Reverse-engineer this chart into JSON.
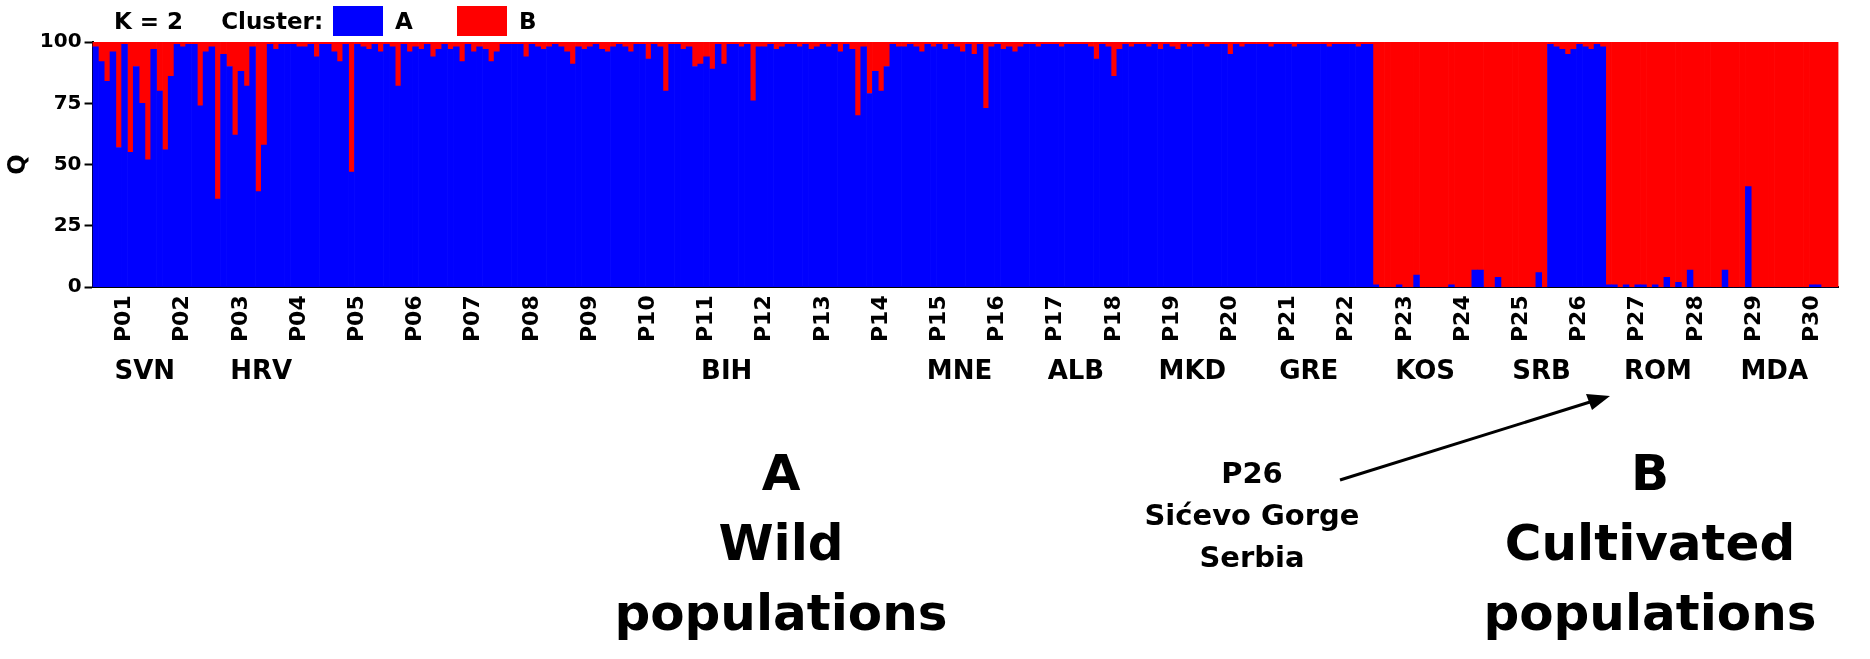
{
  "chart_data": {
    "type": "bar",
    "stacked": true,
    "title": "K = 2",
    "legend_title": "Cluster:",
    "legend": "top left",
    "ylabel": "Q",
    "ylim": [
      0,
      100
    ],
    "yticks": [
      0,
      25,
      50,
      75,
      100
    ],
    "grid": false,
    "categories": [
      null,
      null,
      null,
      null,
      null,
      "P01",
      null,
      null,
      null,
      null,
      null,
      null,
      null,
      null,
      null,
      "P02",
      null,
      null,
      null,
      null,
      null,
      null,
      null,
      null,
      null,
      "P03",
      null,
      null,
      null,
      null,
      null,
      null,
      null,
      null,
      null,
      "P04",
      null,
      null,
      null,
      null,
      null,
      null,
      null,
      null,
      null,
      "P05",
      null,
      null,
      null,
      null,
      null,
      null,
      null,
      null,
      null,
      "P06",
      null,
      null,
      null,
      null,
      null,
      null,
      null,
      null,
      null,
      "P07",
      null,
      null,
      null,
      null,
      null,
      null,
      null,
      null,
      null,
      "P08",
      null,
      null,
      null,
      null,
      null,
      null,
      null,
      null,
      null,
      "P09",
      null,
      null,
      null,
      null,
      null,
      null,
      null,
      null,
      null,
      "P10",
      null,
      null,
      null,
      null,
      null,
      null,
      null,
      null,
      null,
      "P11",
      null,
      null,
      null,
      null,
      null,
      null,
      null,
      null,
      null,
      "P12",
      null,
      null,
      null,
      null,
      null,
      null,
      null,
      null,
      null,
      "P13",
      null,
      null,
      null,
      null,
      null,
      null,
      null,
      null,
      null,
      "P14",
      null,
      null,
      null,
      null,
      null,
      null,
      null,
      null,
      null,
      "P15",
      null,
      null,
      null,
      null,
      null,
      null,
      null,
      null,
      null,
      "P16",
      null,
      null,
      null,
      null,
      null,
      null,
      null,
      null,
      null,
      "P17",
      null,
      null,
      null,
      null,
      null,
      null,
      null,
      null,
      null,
      "P18",
      null,
      null,
      null,
      null,
      null,
      null,
      null,
      null,
      null,
      "P19",
      null,
      null,
      null,
      null,
      null,
      null,
      null,
      null,
      null,
      "P20",
      null,
      null,
      null,
      null,
      null,
      null,
      null,
      null,
      null,
      "P21",
      null,
      null,
      null,
      null,
      null,
      null,
      null,
      null,
      null,
      "P22",
      null,
      null,
      null,
      null,
      null,
      null,
      null,
      null,
      null,
      "P23",
      null,
      null,
      null,
      null,
      null,
      null,
      null,
      null,
      null,
      "P24",
      null,
      null,
      null,
      null,
      null,
      null,
      null,
      null,
      null,
      "P25",
      null,
      null,
      null,
      null,
      null,
      null,
      null,
      null,
      null,
      "P26",
      null,
      null,
      null,
      null,
      null,
      null,
      null,
      null,
      null,
      "P27",
      null,
      null,
      null,
      null,
      null,
      null,
      null,
      null,
      null,
      "P28",
      null,
      null,
      null,
      null,
      null,
      null,
      null,
      null,
      null,
      "P29",
      null,
      null,
      null,
      null,
      null,
      null,
      null,
      null,
      null,
      "P30",
      null,
      null,
      null,
      null
    ],
    "series": [
      {
        "name": "A",
        "color": "#0000ff",
        "values": [
          98,
          92,
          84,
          96,
          57,
          99,
          55,
          90,
          75,
          52,
          97,
          80,
          56,
          86,
          99,
          98,
          99,
          99,
          74,
          96,
          98,
          36,
          95,
          90,
          62,
          88,
          82,
          98,
          39,
          58,
          99,
          97,
          99,
          99,
          99,
          98,
          98,
          99,
          94,
          99,
          99,
          96,
          92,
          99,
          47,
          99,
          98,
          97,
          99,
          96,
          99,
          98,
          82,
          99,
          96,
          98,
          97,
          99,
          94,
          97,
          99,
          97,
          98,
          92,
          99,
          96,
          98,
          97,
          92,
          96,
          99,
          99,
          99,
          99,
          94,
          99,
          98,
          97,
          98,
          99,
          98,
          96,
          91,
          98,
          97,
          98,
          99,
          97,
          96,
          98,
          99,
          98,
          96,
          99,
          99,
          93,
          99,
          98,
          80,
          99,
          99,
          97,
          98,
          90,
          91,
          94,
          89,
          99,
          91,
          99,
          99,
          98,
          99,
          76,
          98,
          98,
          99,
          97,
          98,
          99,
          99,
          98,
          99,
          97,
          98,
          99,
          98,
          99,
          96,
          99,
          97,
          70,
          98,
          79,
          88,
          80,
          90,
          99,
          98,
          98,
          99,
          98,
          96,
          99,
          98,
          99,
          97,
          99,
          98,
          96,
          99,
          95,
          99,
          73,
          98,
          99,
          97,
          98,
          96,
          98,
          99,
          99,
          98,
          99,
          99,
          99,
          98,
          99,
          99,
          99,
          99,
          98,
          93,
          99,
          98,
          86,
          97,
          99,
          98,
          99,
          99,
          98,
          99,
          97,
          99,
          98,
          97,
          99,
          98,
          99,
          99,
          98,
          99,
          99,
          99,
          95,
          99,
          98,
          99,
          99,
          99,
          99,
          98,
          99,
          99,
          99,
          98,
          99,
          99,
          99,
          99,
          99,
          98,
          99,
          99,
          99,
          99,
          98,
          99,
          99,
          1,
          0,
          0,
          0,
          1,
          0,
          0,
          5,
          0,
          0,
          0,
          0,
          0,
          1,
          0,
          0,
          0,
          7,
          7,
          0,
          0,
          4,
          0,
          0,
          0,
          0,
          0,
          0,
          6,
          0,
          99,
          98,
          97,
          95,
          97,
          99,
          98,
          97,
          99,
          98,
          1,
          1,
          0,
          1,
          0,
          1,
          1,
          0,
          1,
          0,
          4,
          0,
          2,
          0,
          7,
          0,
          0,
          0,
          0,
          0,
          7,
          0,
          0,
          0,
          41,
          0,
          0,
          0,
          0,
          0,
          0,
          0,
          0,
          0,
          0,
          1,
          1,
          0,
          0,
          0
        ]
      },
      {
        "name": "B",
        "color": "#ff0000",
        "values": [
          2,
          8,
          16,
          4,
          43,
          1,
          45,
          10,
          25,
          48,
          3,
          20,
          44,
          14,
          1,
          2,
          1,
          1,
          26,
          4,
          2,
          64,
          5,
          10,
          38,
          12,
          18,
          2,
          61,
          42,
          1,
          3,
          1,
          1,
          1,
          2,
          2,
          1,
          6,
          1,
          1,
          4,
          8,
          1,
          53,
          1,
          2,
          3,
          1,
          4,
          1,
          2,
          18,
          1,
          4,
          2,
          3,
          1,
          6,
          3,
          1,
          3,
          2,
          8,
          1,
          4,
          2,
          3,
          8,
          4,
          1,
          1,
          1,
          1,
          6,
          1,
          2,
          3,
          2,
          1,
          2,
          4,
          9,
          2,
          3,
          2,
          1,
          3,
          4,
          2,
          1,
          2,
          4,
          1,
          1,
          7,
          1,
          2,
          20,
          1,
          1,
          3,
          2,
          10,
          9,
          6,
          11,
          1,
          9,
          1,
          1,
          2,
          1,
          24,
          2,
          2,
          1,
          3,
          2,
          1,
          1,
          2,
          1,
          3,
          2,
          1,
          2,
          1,
          4,
          1,
          3,
          30,
          2,
          21,
          12,
          20,
          10,
          1,
          2,
          2,
          1,
          2,
          4,
          1,
          2,
          1,
          3,
          1,
          2,
          4,
          1,
          5,
          1,
          27,
          2,
          1,
          3,
          2,
          4,
          2,
          1,
          1,
          2,
          1,
          1,
          1,
          2,
          1,
          1,
          1,
          1,
          2,
          7,
          1,
          2,
          14,
          3,
          1,
          2,
          1,
          1,
          2,
          1,
          3,
          1,
          2,
          3,
          1,
          2,
          1,
          1,
          2,
          1,
          1,
          1,
          5,
          1,
          2,
          1,
          1,
          1,
          1,
          2,
          1,
          1,
          1,
          2,
          1,
          1,
          1,
          1,
          1,
          2,
          1,
          1,
          1,
          1,
          2,
          1,
          1,
          99,
          100,
          100,
          100,
          99,
          100,
          100,
          95,
          100,
          100,
          100,
          100,
          100,
          99,
          100,
          100,
          100,
          93,
          93,
          100,
          100,
          96,
          100,
          100,
          100,
          100,
          100,
          100,
          94,
          100,
          1,
          2,
          3,
          5,
          3,
          1,
          2,
          3,
          1,
          2,
          99,
          99,
          100,
          99,
          100,
          99,
          99,
          100,
          99,
          100,
          96,
          100,
          98,
          100,
          93,
          100,
          100,
          100,
          100,
          100,
          93,
          100,
          100,
          100,
          59,
          100,
          100,
          100,
          100,
          100,
          100,
          100,
          100,
          100,
          100,
          99,
          99,
          100,
          100,
          100
        ]
      }
    ],
    "annotations": [
      "SVN",
      "HRV",
      "BIH",
      "MNE",
      "ALB",
      "MKD",
      "GRE",
      "KOS",
      "SRB",
      "ROM",
      "MDA",
      "A\nWild\npopulations",
      "P26\nSićevo Gorge\nSerbia",
      "B\nCultivated\npopulations"
    ]
  }
}
